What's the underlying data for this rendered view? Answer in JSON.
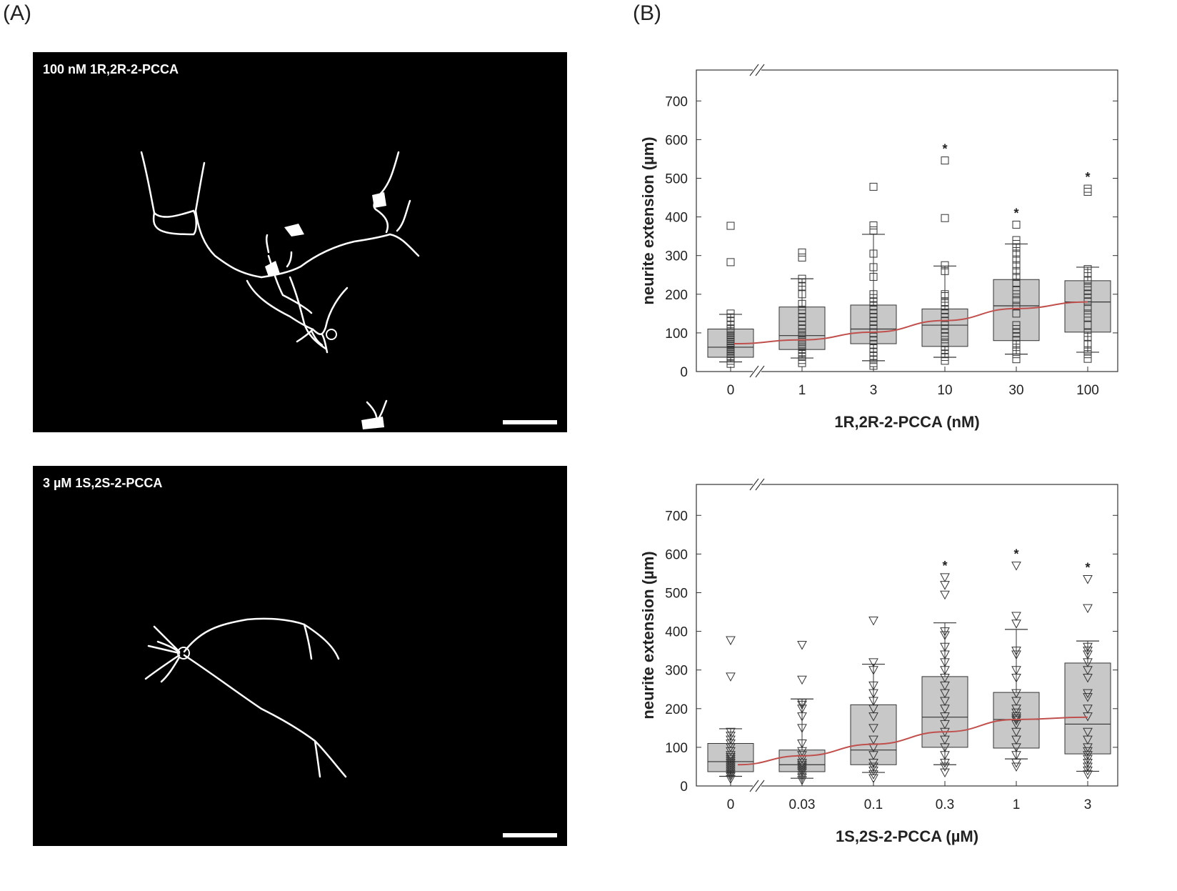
{
  "panel_labels": {
    "a": "(A)",
    "b": "(B)"
  },
  "micrographs": [
    {
      "caption": "100 nM 1R,2R-2-PCCA"
    },
    {
      "caption": "3 µM 1S,2S-2-PCCA"
    }
  ],
  "chart_data": [
    {
      "type": "box",
      "title": "",
      "xlabel": "1R,2R-2-PCCA (nM)",
      "ylabel": "neurite extension (µm)",
      "ylim": [
        0,
        780
      ],
      "yticks": [
        0,
        100,
        200,
        300,
        400,
        500,
        600,
        700
      ],
      "axis_break": "x-axis between 0 and 1",
      "grid": false,
      "marker": "square",
      "categories": [
        "0",
        "1",
        "3",
        "10",
        "30",
        "100"
      ],
      "boxes": [
        {
          "q1": 37,
          "median": 63,
          "q3": 110,
          "whisker_low": 25,
          "whisker_high": 148,
          "significant": false
        },
        {
          "q1": 57,
          "median": 93,
          "q3": 167,
          "whisker_low": 35,
          "whisker_high": 240,
          "significant": false
        },
        {
          "q1": 72,
          "median": 110,
          "q3": 172,
          "whisker_low": 28,
          "whisker_high": 355,
          "significant": false
        },
        {
          "q1": 65,
          "median": 120,
          "q3": 162,
          "whisker_low": 37,
          "whisker_high": 273,
          "significant": true
        },
        {
          "q1": 80,
          "median": 170,
          "q3": 238,
          "whisker_low": 45,
          "whisker_high": 330,
          "significant": true
        },
        {
          "q1": 102,
          "median": 180,
          "q3": 235,
          "whisker_low": 50,
          "whisker_high": 270,
          "significant": true
        }
      ],
      "points": [
        [
          20,
          28,
          35,
          40,
          45,
          50,
          55,
          60,
          65,
          70,
          75,
          80,
          85,
          90,
          95,
          100,
          105,
          110,
          120,
          130,
          140,
          150,
          283,
          377
        ],
        [
          22,
          30,
          38,
          45,
          50,
          58,
          65,
          72,
          80,
          88,
          95,
          100,
          110,
          120,
          130,
          140,
          150,
          160,
          175,
          200,
          220,
          230,
          240,
          295,
          308
        ],
        [
          15,
          22,
          30,
          40,
          50,
          60,
          70,
          80,
          90,
          100,
          110,
          120,
          130,
          140,
          150,
          160,
          170,
          180,
          190,
          200,
          245,
          270,
          305,
          365,
          378,
          478
        ],
        [
          28,
          38,
          45,
          55,
          65,
          75,
          90,
          100,
          110,
          120,
          130,
          140,
          150,
          160,
          170,
          180,
          195,
          200,
          260,
          275,
          397,
          546
        ],
        [
          32,
          45,
          55,
          70,
          80,
          90,
          100,
          110,
          120,
          150,
          170,
          185,
          200,
          210,
          230,
          245,
          260,
          275,
          290,
          305,
          320,
          330,
          340,
          380
        ],
        [
          33,
          45,
          55,
          70,
          90,
          100,
          120,
          140,
          150,
          165,
          180,
          190,
          200,
          210,
          220,
          235,
          255,
          265,
          465,
          473
        ]
      ],
      "fit_curve": [
        {
          "category_index": 0.05,
          "value": 72
        },
        {
          "category_index": 1,
          "value": 82
        },
        {
          "category_index": 2,
          "value": 102
        },
        {
          "category_index": 3,
          "value": 132
        },
        {
          "category_index": 4,
          "value": 163
        },
        {
          "category_index": 5,
          "value": 180
        }
      ],
      "colors": {
        "box": "#c8c8c8",
        "fit": "#c0504d"
      }
    },
    {
      "type": "box",
      "title": "",
      "xlabel": "1S,2S-2-PCCA (µM)",
      "ylabel": "neurite extension (µm)",
      "ylim": [
        0,
        780
      ],
      "yticks": [
        0,
        100,
        200,
        300,
        400,
        500,
        600,
        700
      ],
      "axis_break": "x-axis between 0 and 0.03",
      "grid": false,
      "marker": "triangle-down",
      "categories": [
        "0",
        "0.03",
        "0.1",
        "0.3",
        "1",
        "3"
      ],
      "boxes": [
        {
          "q1": 37,
          "median": 63,
          "q3": 110,
          "whisker_low": 25,
          "whisker_high": 148,
          "significant": false
        },
        {
          "q1": 37,
          "median": 55,
          "q3": 93,
          "whisker_low": 20,
          "whisker_high": 225,
          "significant": false
        },
        {
          "q1": 55,
          "median": 93,
          "q3": 210,
          "whisker_low": 35,
          "whisker_high": 315,
          "significant": false
        },
        {
          "q1": 100,
          "median": 178,
          "q3": 283,
          "whisker_low": 55,
          "whisker_high": 422,
          "significant": true
        },
        {
          "q1": 98,
          "median": 172,
          "q3": 242,
          "whisker_low": 70,
          "whisker_high": 405,
          "significant": true
        },
        {
          "q1": 83,
          "median": 160,
          "q3": 318,
          "whisker_low": 38,
          "whisker_high": 375,
          "significant": true
        }
      ],
      "points": [
        [
          18,
          25,
          30,
          35,
          40,
          45,
          50,
          55,
          60,
          65,
          70,
          75,
          80,
          90,
          100,
          110,
          120,
          130,
          140,
          283,
          377
        ],
        [
          15,
          22,
          28,
          35,
          40,
          45,
          50,
          55,
          60,
          70,
          80,
          90,
          110,
          150,
          180,
          200,
          210,
          215,
          275,
          365
        ],
        [
          20,
          30,
          40,
          50,
          60,
          80,
          100,
          120,
          150,
          180,
          200,
          220,
          240,
          260,
          300,
          320,
          428
        ],
        [
          35,
          50,
          60,
          80,
          100,
          120,
          140,
          160,
          180,
          200,
          220,
          240,
          260,
          280,
          300,
          320,
          340,
          360,
          390,
          400,
          495,
          520,
          540
        ],
        [
          50,
          60,
          80,
          100,
          120,
          140,
          160,
          170,
          175,
          180,
          190,
          200,
          220,
          240,
          280,
          300,
          340,
          350,
          420,
          440,
          570
        ],
        [
          30,
          40,
          50,
          60,
          70,
          80,
          90,
          100,
          120,
          140,
          180,
          200,
          230,
          240,
          280,
          300,
          320,
          340,
          350,
          360,
          460,
          535
        ]
      ],
      "fit_curve": [
        {
          "category_index": 0.1,
          "value": 55
        },
        {
          "category_index": 1,
          "value": 78
        },
        {
          "category_index": 2,
          "value": 108
        },
        {
          "category_index": 3,
          "value": 140
        },
        {
          "category_index": 4,
          "value": 172
        },
        {
          "category_index": 5,
          "value": 178
        }
      ],
      "colors": {
        "box": "#c8c8c8",
        "fit": "#c0504d"
      }
    }
  ]
}
